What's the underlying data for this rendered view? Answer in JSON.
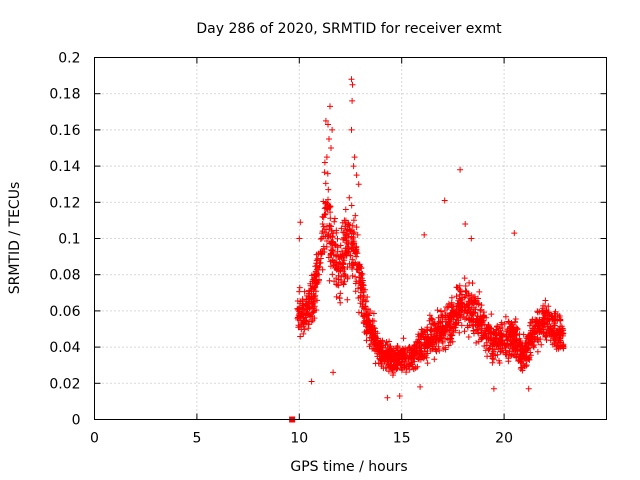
{
  "chart_data": {
    "type": "scatter",
    "title": "Day 286 of 2020, SRMTID for receiver exmt",
    "xlabel": "GPS time / hours",
    "ylabel": "SRMTID / TECUs",
    "xlim": [
      0,
      25
    ],
    "ylim": [
      0,
      0.2
    ],
    "xticks": [
      "0",
      "5",
      "10",
      "15",
      "20"
    ],
    "yticks": [
      "0",
      "0.02",
      "0.04",
      "0.06",
      "0.08",
      "0.1",
      "0.12",
      "0.14",
      "0.16",
      "0.18",
      "0.2"
    ],
    "grid": true,
    "color": "#ff0000",
    "marker_point": {
      "x": 9.65,
      "y": 0.0
    },
    "profile": [
      {
        "x": 9.9,
        "y": 0.062,
        "spread": 0.02
      },
      {
        "x": 10.3,
        "y": 0.055,
        "spread": 0.022
      },
      {
        "x": 10.7,
        "y": 0.07,
        "spread": 0.025
      },
      {
        "x": 11.0,
        "y": 0.085,
        "spread": 0.03
      },
      {
        "x": 11.3,
        "y": 0.12,
        "spread": 0.04
      },
      {
        "x": 11.6,
        "y": 0.095,
        "spread": 0.035
      },
      {
        "x": 12.0,
        "y": 0.08,
        "spread": 0.03
      },
      {
        "x": 12.4,
        "y": 0.1,
        "spread": 0.045
      },
      {
        "x": 12.8,
        "y": 0.09,
        "spread": 0.035
      },
      {
        "x": 13.2,
        "y": 0.06,
        "spread": 0.02
      },
      {
        "x": 13.6,
        "y": 0.045,
        "spread": 0.018
      },
      {
        "x": 14.0,
        "y": 0.038,
        "spread": 0.015
      },
      {
        "x": 14.5,
        "y": 0.033,
        "spread": 0.014
      },
      {
        "x": 15.0,
        "y": 0.035,
        "spread": 0.015
      },
      {
        "x": 15.5,
        "y": 0.034,
        "spread": 0.015
      },
      {
        "x": 16.0,
        "y": 0.04,
        "spread": 0.017
      },
      {
        "x": 16.5,
        "y": 0.045,
        "spread": 0.018
      },
      {
        "x": 17.0,
        "y": 0.05,
        "spread": 0.02
      },
      {
        "x": 17.5,
        "y": 0.055,
        "spread": 0.022
      },
      {
        "x": 18.0,
        "y": 0.065,
        "spread": 0.025
      },
      {
        "x": 18.5,
        "y": 0.06,
        "spread": 0.022
      },
      {
        "x": 19.0,
        "y": 0.05,
        "spread": 0.02
      },
      {
        "x": 19.5,
        "y": 0.042,
        "spread": 0.018
      },
      {
        "x": 20.0,
        "y": 0.045,
        "spread": 0.02
      },
      {
        "x": 20.5,
        "y": 0.045,
        "spread": 0.02
      },
      {
        "x": 21.0,
        "y": 0.035,
        "spread": 0.016
      },
      {
        "x": 21.5,
        "y": 0.05,
        "spread": 0.02
      },
      {
        "x": 22.0,
        "y": 0.055,
        "spread": 0.022
      },
      {
        "x": 22.5,
        "y": 0.05,
        "spread": 0.02
      },
      {
        "x": 22.9,
        "y": 0.045,
        "spread": 0.018
      }
    ],
    "notable_points": [
      {
        "x": 12.55,
        "y": 0.188
      },
      {
        "x": 12.6,
        "y": 0.185
      },
      {
        "x": 12.58,
        "y": 0.176
      },
      {
        "x": 11.5,
        "y": 0.173
      },
      {
        "x": 11.3,
        "y": 0.165
      },
      {
        "x": 11.4,
        "y": 0.163
      },
      {
        "x": 11.6,
        "y": 0.16
      },
      {
        "x": 12.55,
        "y": 0.16
      },
      {
        "x": 11.45,
        "y": 0.155
      },
      {
        "x": 11.55,
        "y": 0.15
      },
      {
        "x": 11.35,
        "y": 0.145
      },
      {
        "x": 12.7,
        "y": 0.145
      },
      {
        "x": 12.65,
        "y": 0.14
      },
      {
        "x": 11.25,
        "y": 0.142
      },
      {
        "x": 12.8,
        "y": 0.135
      },
      {
        "x": 12.9,
        "y": 0.13
      },
      {
        "x": 17.85,
        "y": 0.138
      },
      {
        "x": 17.1,
        "y": 0.121
      },
      {
        "x": 18.1,
        "y": 0.108
      },
      {
        "x": 20.5,
        "y": 0.103
      },
      {
        "x": 16.1,
        "y": 0.102
      },
      {
        "x": 10.05,
        "y": 0.109
      },
      {
        "x": 10.0,
        "y": 0.1
      },
      {
        "x": 12.2,
        "y": 0.11
      },
      {
        "x": 12.35,
        "y": 0.105
      },
      {
        "x": 18.4,
        "y": 0.1
      },
      {
        "x": 14.9,
        "y": 0.013
      },
      {
        "x": 14.3,
        "y": 0.012
      },
      {
        "x": 15.9,
        "y": 0.018
      },
      {
        "x": 10.6,
        "y": 0.021
      },
      {
        "x": 11.65,
        "y": 0.026
      },
      {
        "x": 21.2,
        "y": 0.017
      },
      {
        "x": 19.5,
        "y": 0.017
      }
    ]
  }
}
